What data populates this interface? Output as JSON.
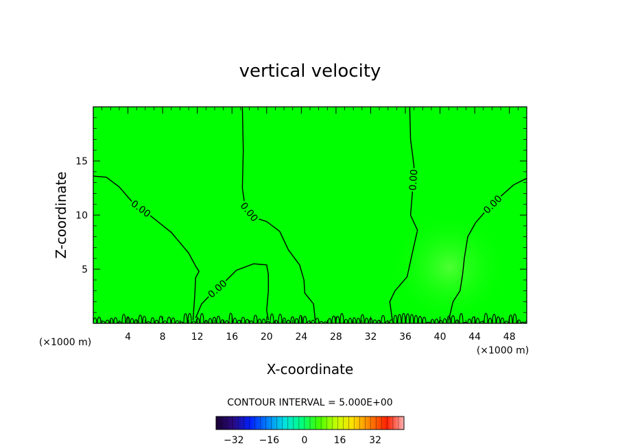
{
  "chart_data": {
    "type": "contour",
    "title": "vertical velocity",
    "xlabel": "X-coordinate",
    "ylabel": "Z-coordinate",
    "x_unit_label": "(×1000 m)",
    "x_unit_label_right": "(×1000 m)",
    "xlim": [
      0,
      50
    ],
    "ylim": [
      0,
      20
    ],
    "x_ticks": [
      4,
      8,
      12,
      16,
      20,
      24,
      28,
      32,
      36,
      40,
      44,
      48
    ],
    "y_ticks": [
      5,
      10,
      15
    ],
    "field_color": "#00ff00",
    "contour_color": "#000000",
    "contour_lines": [
      {
        "label": "0.00",
        "points": [
          [
            0,
            13.6
          ],
          [
            1.5,
            13.5
          ],
          [
            3,
            12.6
          ],
          [
            4.5,
            11.2
          ],
          [
            6.5,
            10
          ],
          [
            9,
            8.4
          ],
          [
            11,
            6.5
          ],
          [
            11.8,
            5.3
          ],
          [
            12.2,
            4.8
          ],
          [
            11.8,
            4.2
          ],
          [
            11.7,
            2.5
          ],
          [
            11.5,
            0.3
          ]
        ]
      },
      {
        "label": "0.00",
        "points": [
          [
            17.2,
            20
          ],
          [
            17.3,
            16
          ],
          [
            17.2,
            12.5
          ],
          [
            17.5,
            10.8
          ],
          [
            18.5,
            9.8
          ],
          [
            20,
            9.4
          ],
          [
            21.5,
            8.5
          ],
          [
            22.5,
            6.8
          ],
          [
            23.8,
            5.4
          ],
          [
            24.3,
            4
          ],
          [
            24.4,
            2.8
          ],
          [
            25.4,
            1.8
          ],
          [
            25.6,
            0.3
          ]
        ]
      },
      {
        "label": "0.00",
        "points": [
          [
            11.8,
            0.5
          ],
          [
            12.5,
            1.8
          ],
          [
            13.6,
            2.7
          ],
          [
            15,
            3.7
          ],
          [
            16.5,
            4.9
          ],
          [
            18.5,
            5.5
          ],
          [
            20,
            5.4
          ],
          [
            20.2,
            4.5
          ],
          [
            20.2,
            3
          ],
          [
            20,
            1.2
          ],
          [
            20.2,
            0.3
          ]
        ]
      },
      {
        "label": "0.00",
        "points": [
          [
            36.5,
            20
          ],
          [
            36.6,
            17
          ],
          [
            37,
            14.5
          ],
          [
            36.8,
            12
          ],
          [
            36.6,
            10
          ],
          [
            37.4,
            8.6
          ],
          [
            36.8,
            6.5
          ],
          [
            36.2,
            4.3
          ],
          [
            34.8,
            3
          ],
          [
            34.2,
            2
          ],
          [
            34.5,
            0.3
          ]
        ]
      },
      {
        "label": "0.00",
        "points": [
          [
            50,
            13.4
          ],
          [
            48.5,
            12.8
          ],
          [
            46.8,
            11.6
          ],
          [
            45.3,
            10.4
          ],
          [
            44.1,
            9.3
          ],
          [
            43.2,
            8
          ],
          [
            42.8,
            6
          ],
          [
            42.6,
            4.5
          ],
          [
            42.3,
            3
          ],
          [
            41.5,
            2
          ],
          [
            41,
            0.3
          ]
        ]
      }
    ],
    "colorbar": {
      "label": "CONTOUR INTERVAL = 5.000E+00",
      "ticks": [
        "-32",
        "-16",
        "0",
        "16",
        "32"
      ],
      "tick_values": [
        -32,
        -16,
        0,
        16,
        32
      ],
      "min": -40,
      "max": 45,
      "stops": [
        "#1a0033",
        "#2a0a80",
        "#0020ff",
        "#0080ff",
        "#00e0e0",
        "#00ff80",
        "#40ff00",
        "#c0ff00",
        "#ffe000",
        "#ff8000",
        "#ff2000",
        "#ffb0b0"
      ]
    }
  }
}
